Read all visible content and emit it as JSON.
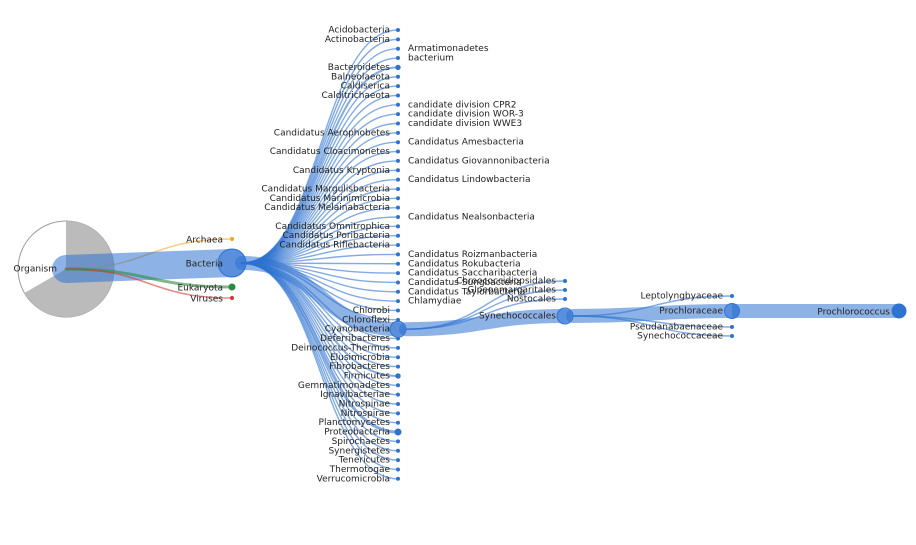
{
  "colors": {
    "bacteria": "#2f73d1",
    "archaea": "#f5a623",
    "eukaryota": "#2e8b3e",
    "viruses": "#d43b3b",
    "root_fill": "#bbbbbb",
    "root_outline": "#9c9c9c"
  },
  "tree": {
    "root": "Organism",
    "domains": [
      {
        "name": "Archaea",
        "color": "archaea"
      },
      {
        "name": "Bacteria",
        "color": "bacteria"
      },
      {
        "name": "Eukaryota",
        "color": "eukaryota"
      },
      {
        "name": "Viruses",
        "color": "viruses"
      }
    ],
    "phyla_left": [
      "Acidobacteria",
      "Actinobacteria",
      "Bacteroidetes",
      "Balneolaeota",
      "Caldiserica",
      "Calditrichaeota",
      "Candidatus Aerophobetes",
      "Candidatus Cloacimonetes",
      "Candidatus Kryptonia",
      "Candidatus Margulisbacteria",
      "Candidatus Marinimicrobia",
      "Candidatus Melainabacteria",
      "Candidatus Omnitrophica",
      "Candidatus Poribacteria",
      "Candidatus Riflebacteria",
      "Chlorobi",
      "Chloroflexi",
      "Cyanobacteria",
      "Deferribacteres",
      "Deinococcus-Thermus",
      "Elusimicrobia",
      "Fibrobacteres",
      "Firmicutes",
      "Gemmatimonadetes",
      "Ignavibacteriae",
      "Nitrospinae",
      "Nitrospirae",
      "Planctomycetes",
      "Proteobacteria",
      "Spirochaetes",
      "Synergistetes",
      "Tenericutes",
      "Thermotogae",
      "Verrucomicrobia"
    ],
    "phyla_right": [
      "Armatimonadetes",
      "Candidatus Amesbacteria",
      "Candidatus Giovannonibacteria",
      "Candidatus Lindowbacteria",
      "Candidatus Nealsonbacteria",
      "Candidatus Roizmanbacteria",
      "Candidatus Rokubacteria",
      "Candidatus Saccharibacteria",
      "Candidatus Sungbacteria",
      "Candidatus Taylorbacteria",
      "Chlamydiae",
      "bacterium",
      "candidate division CPR2",
      "candidate division WOR-3",
      "candidate division WWE3"
    ],
    "cyanobacteria_orders": [
      "Chroococcidiopsidales",
      "Gloeoemargaritales",
      "Nostocales",
      "Synechococcales"
    ],
    "synechococcales_families": [
      "Leptolyngbyaceae",
      "Prochloraceae",
      "Pseudanabaenaceae",
      "Synechococcaceae"
    ],
    "prochloraceae_genera": [
      "Prochlorococcus"
    ]
  }
}
